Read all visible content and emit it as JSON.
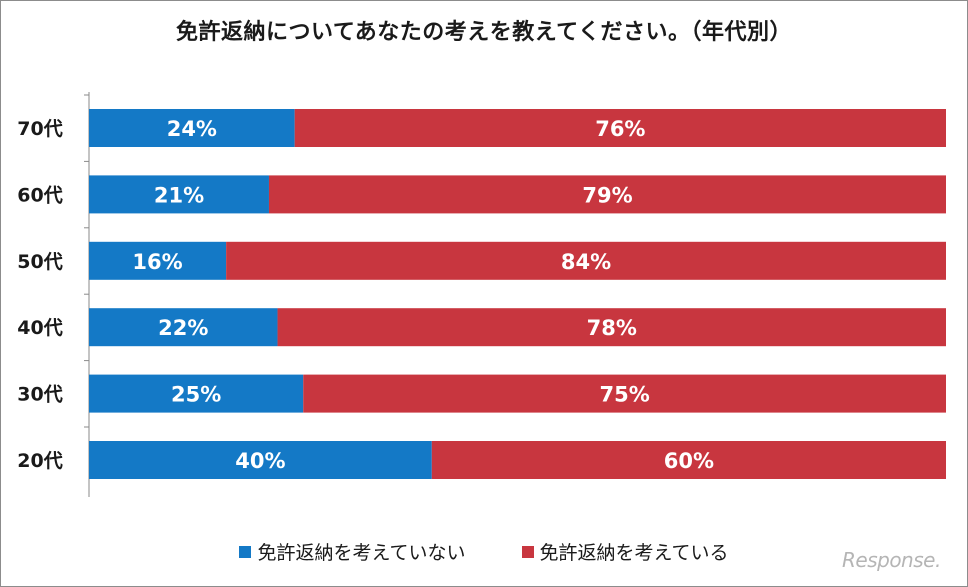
{
  "chart_data": {
    "type": "bar",
    "orientation": "horizontal-stacked-100",
    "title": "免許返納についてあなたの考えを教えてください。（年代別）",
    "categories": [
      "70代",
      "60代",
      "50代",
      "40代",
      "30代",
      "20代"
    ],
    "series": [
      {
        "name": "免許返納を考えていない",
        "values": [
          24,
          21,
          16,
          22,
          25,
          40
        ],
        "labels": [
          "24%",
          "21%",
          "16%",
          "22%",
          "25%",
          "40%"
        ]
      },
      {
        "name": "免許返納を考えている",
        "values": [
          76,
          79,
          84,
          78,
          75,
          60
        ],
        "labels": [
          "76%",
          "79%",
          "84%",
          "78%",
          "75%",
          "60%"
        ]
      }
    ],
    "xlim": [
      0,
      100
    ],
    "grid": false,
    "legend_position": "bottom"
  },
  "colors": {
    "not_considering": "#1479c6",
    "considering": "#c8363f"
  },
  "watermark": "Response."
}
